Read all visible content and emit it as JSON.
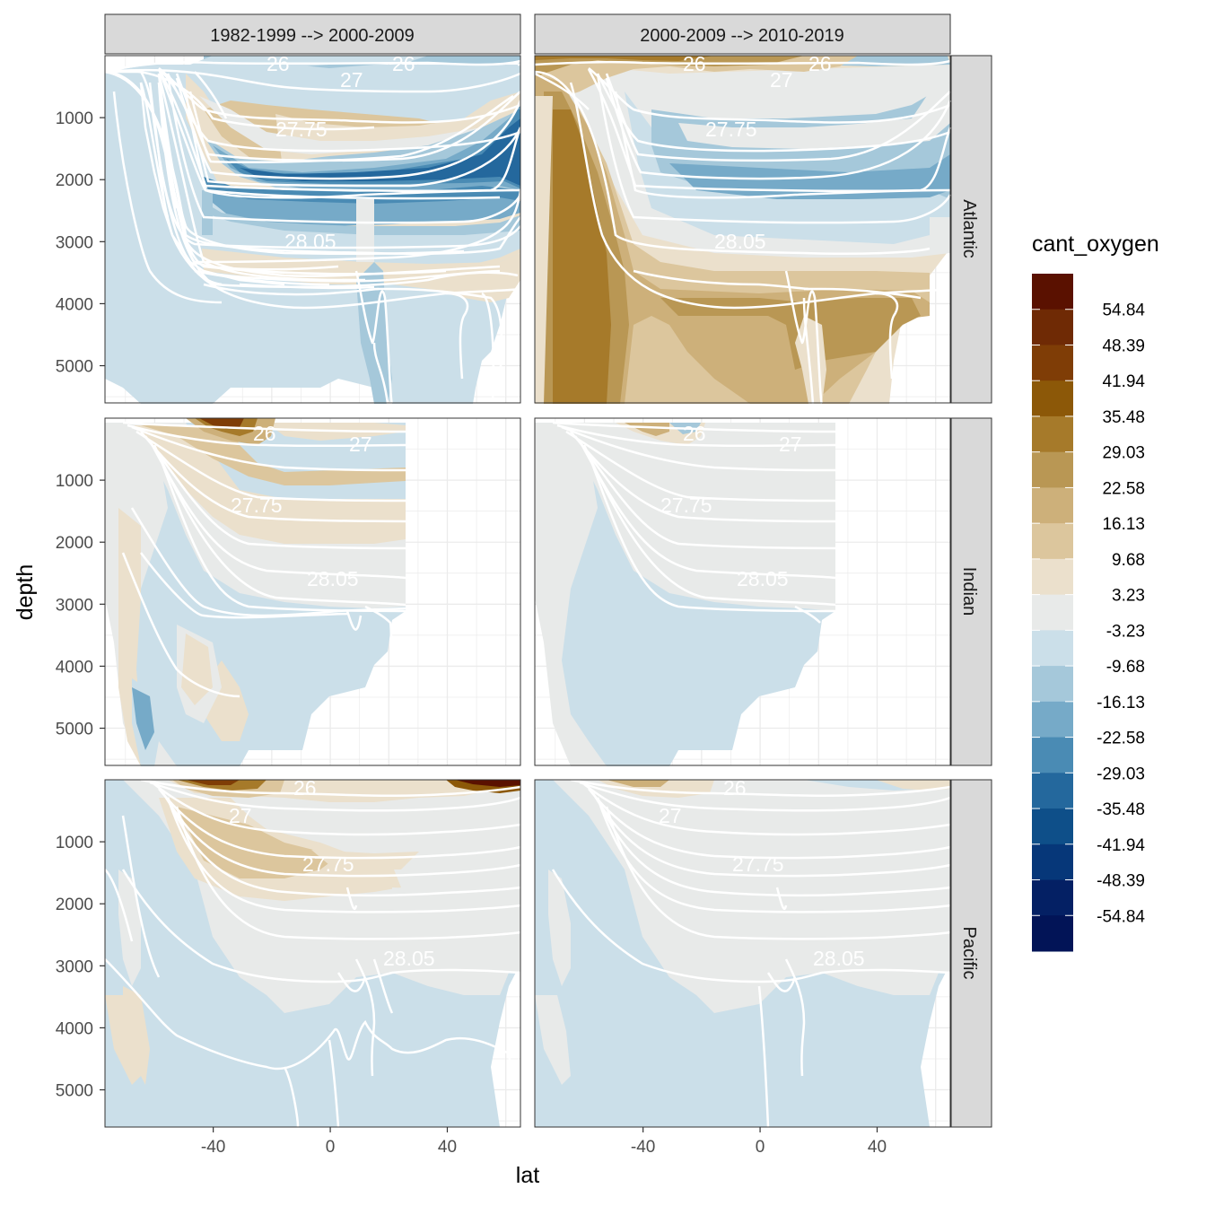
{
  "chart_data": {
    "type": "heatmap",
    "description_free": true,
    "x_label": "lat",
    "y_label": "depth",
    "x_ticks": [
      -40,
      0,
      40
    ],
    "x_tick_labels": [
      "-40",
      "0",
      "40"
    ],
    "xlim": [
      -77,
      65
    ],
    "y_ticks": [
      1000,
      2000,
      3000,
      4000,
      5000
    ],
    "y_tick_labels": [
      "1000",
      "2000",
      "3000",
      "4000",
      "5000"
    ],
    "ylim": [
      5600,
      0
    ],
    "columns": [
      "1982-1999 --> 2000-2009",
      "2000-2009 --> 2010-2019"
    ],
    "rows": [
      "Atlantic",
      "Indian",
      "Pacific"
    ],
    "legend": {
      "title": "cant_oxygen",
      "labels": [
        "54.84",
        "48.39",
        "41.94",
        "35.48",
        "29.03",
        "22.58",
        "16.13",
        "9.68",
        "3.23",
        "-3.23",
        "-9.68",
        "-16.13",
        "-22.58",
        "-29.03",
        "-35.48",
        "-41.94",
        "-48.39",
        "-54.84"
      ],
      "colors": [
        "#5a1100",
        "#6f2a05",
        "#7f3d06",
        "#8c5808",
        "#a67a2a",
        "#b99754",
        "#cdb07a",
        "#dcc69d",
        "#ebe0cc",
        "#e8eae9",
        "#cbdfe9",
        "#a5c8da",
        "#76aac8",
        "#4a8bb4",
        "#24689d",
        "#0e4f89",
        "#063779",
        "#042064",
        "#021457"
      ]
    },
    "isopycnal_labels": [
      "26",
      "27",
      "27.75",
      "28.05"
    ],
    "panels": [
      {
        "row": "Atlantic",
        "col": "1982-1999 --> 2000-2009",
        "dominant": "negative at 1000-2200 m (to -35), positive at 2200-3000 m"
      },
      {
        "row": "Atlantic",
        "col": "2000-2009 --> 2010-2019",
        "dominant": "positive in deep south and 2500-4000 m (to +29)"
      },
      {
        "row": "Indian",
        "col": "1982-1999 --> 2000-2009",
        "dominant": "positive near surface (to +48)"
      },
      {
        "row": "Indian",
        "col": "2000-2009 --> 2010-2019",
        "dominant": "near zero"
      },
      {
        "row": "Pacific",
        "col": "1982-1999 --> 2000-2009",
        "dominant": "positive near surface (to +54)"
      },
      {
        "row": "Pacific",
        "col": "2000-2009 --> 2010-2019",
        "dominant": "near zero with weak negative at depth"
      }
    ]
  }
}
